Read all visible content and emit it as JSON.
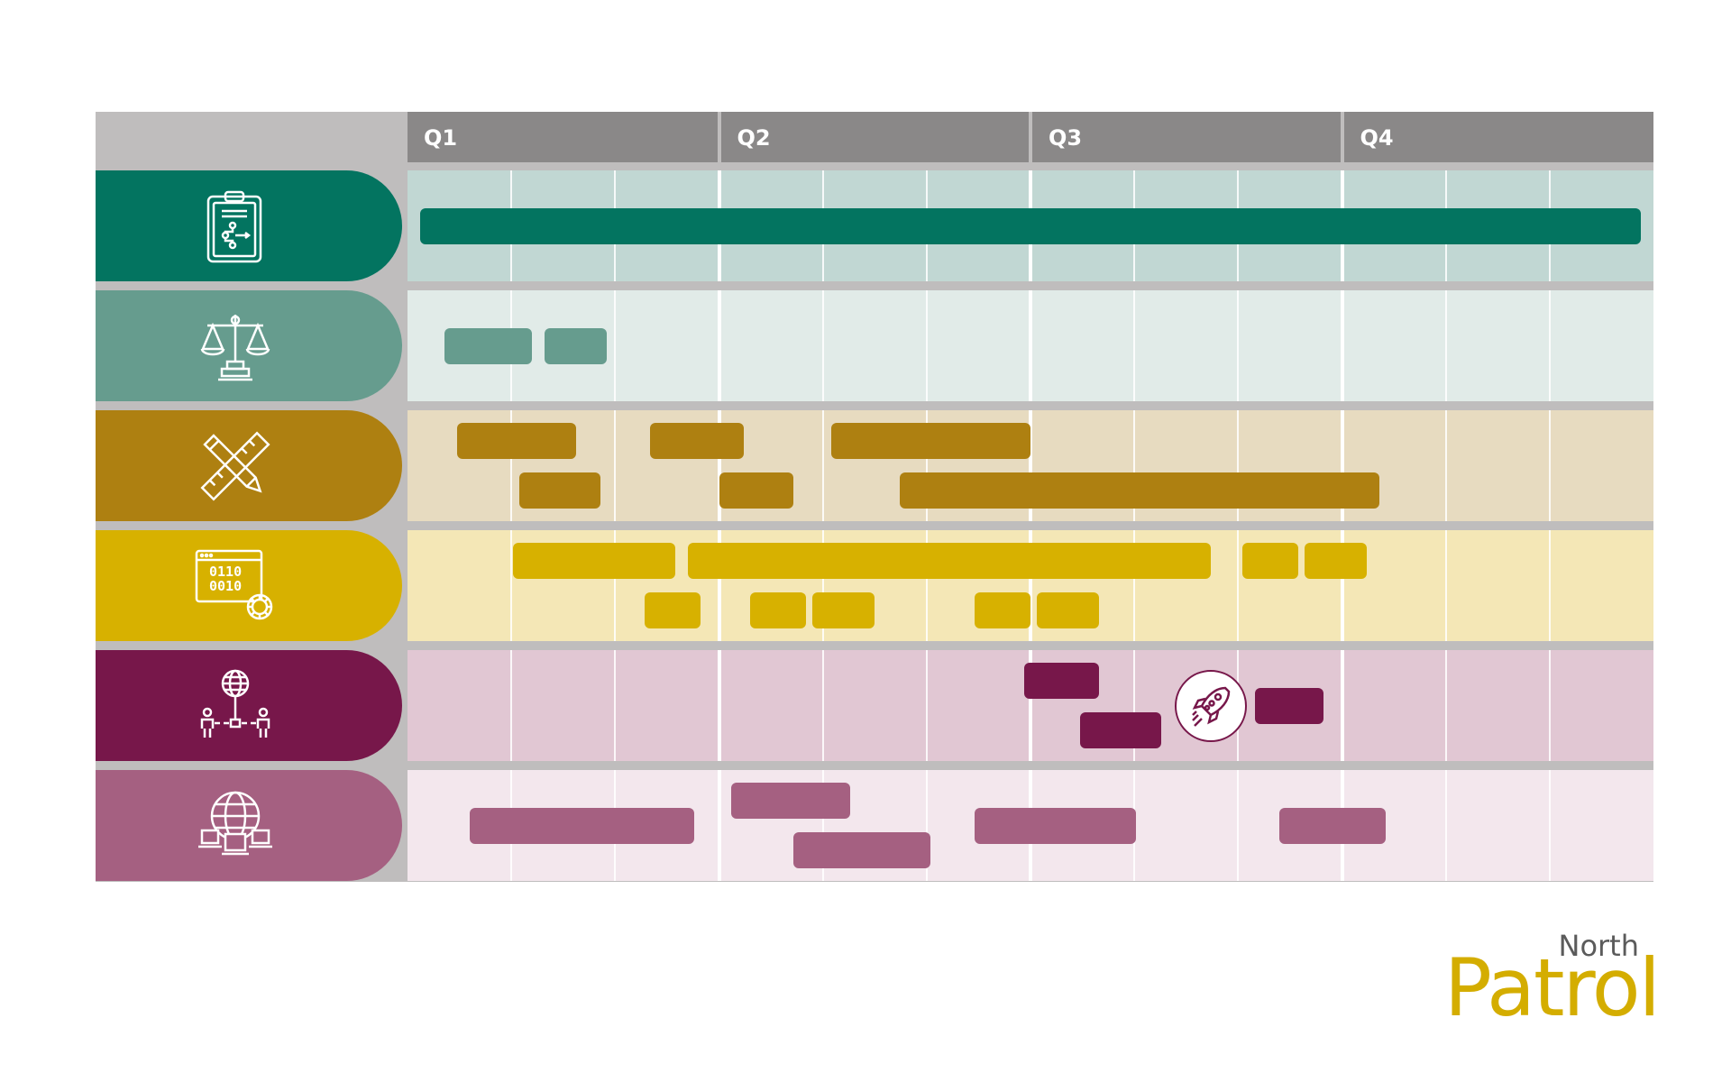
{
  "quarters": [
    "Q1",
    "Q2",
    "Q3",
    "Q4"
  ],
  "rows": [
    {
      "icon": "clipboard-flowchart-icon",
      "tab_color": "#037460",
      "band_color": "#c1d7d3",
      "bar_color": "#037460",
      "bars": [
        {
          "start": 0.01,
          "end": 0.99,
          "lane": 0.5
        }
      ]
    },
    {
      "icon": "scales-of-justice-icon",
      "tab_color": "#669c8e",
      "band_color": "#e1ebe8",
      "bar_color": "#669c8e",
      "bars": [
        {
          "start": 0.03,
          "end": 0.1,
          "lane": 0.5
        },
        {
          "start": 0.11,
          "end": 0.16,
          "lane": 0.5
        }
      ]
    },
    {
      "icon": "ruler-pencil-icon",
      "tab_color": "#ae8011",
      "band_color": "#e7dbc0",
      "bar_color": "#ae8011",
      "bars": [
        {
          "start": 0.04,
          "end": 0.135,
          "lane": 0.28
        },
        {
          "start": 0.195,
          "end": 0.27,
          "lane": 0.28
        },
        {
          "start": 0.34,
          "end": 0.5,
          "lane": 0.28
        },
        {
          "start": 0.09,
          "end": 0.155,
          "lane": 0.72
        },
        {
          "start": 0.25,
          "end": 0.31,
          "lane": 0.72
        },
        {
          "start": 0.395,
          "end": 0.78,
          "lane": 0.72
        }
      ]
    },
    {
      "icon": "binary-code-gear-icon",
      "tab_color": "#d7b100",
      "band_color": "#f4e7b6",
      "bar_color": "#d7b100",
      "bars": [
        {
          "start": 0.085,
          "end": 0.215,
          "lane": 0.28
        },
        {
          "start": 0.225,
          "end": 0.645,
          "lane": 0.28
        },
        {
          "start": 0.67,
          "end": 0.715,
          "lane": 0.28
        },
        {
          "start": 0.72,
          "end": 0.77,
          "lane": 0.28
        },
        {
          "start": 0.19,
          "end": 0.235,
          "lane": 0.72
        },
        {
          "start": 0.275,
          "end": 0.32,
          "lane": 0.72
        },
        {
          "start": 0.325,
          "end": 0.375,
          "lane": 0.72
        },
        {
          "start": 0.455,
          "end": 0.5,
          "lane": 0.72
        },
        {
          "start": 0.505,
          "end": 0.555,
          "lane": 0.72
        }
      ]
    },
    {
      "icon": "global-network-people-icon",
      "tab_color": "#77174a",
      "band_color": "#e1c7d3",
      "bar_color": "#77174a",
      "bars": [
        {
          "start": 0.495,
          "end": 0.555,
          "lane": 0.28
        },
        {
          "start": 0.54,
          "end": 0.605,
          "lane": 0.72
        },
        {
          "start": 0.68,
          "end": 0.735,
          "lane": 0.5
        }
      ],
      "milestones": [
        {
          "icon": "rocket-icon",
          "at": 0.645,
          "lane": 0.5
        }
      ]
    },
    {
      "icon": "globe-computers-icon",
      "tab_color": "#a56081",
      "band_color": "#f3e7ed",
      "bar_color": "#a56081",
      "bars": [
        {
          "start": 0.05,
          "end": 0.23,
          "lane": 0.5
        },
        {
          "start": 0.26,
          "end": 0.355,
          "lane": 0.28
        },
        {
          "start": 0.31,
          "end": 0.42,
          "lane": 0.72
        },
        {
          "start": 0.455,
          "end": 0.585,
          "lane": 0.5
        },
        {
          "start": 0.7,
          "end": 0.785,
          "lane": 0.5
        }
      ]
    }
  ],
  "logo": {
    "small": "North",
    "large": "Patrol"
  }
}
